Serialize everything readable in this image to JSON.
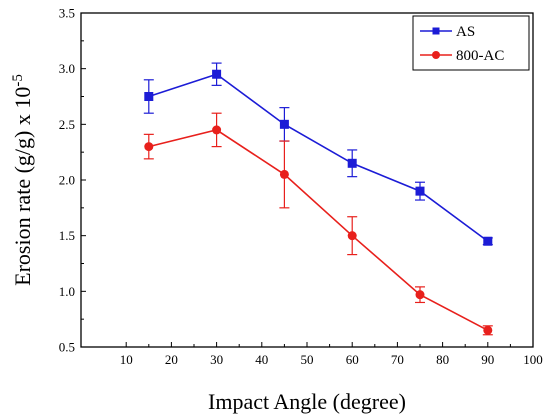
{
  "chart_data": {
    "type": "line",
    "xlabel": "Impact Angle (degree)",
    "ylabel_text": "Erosion rate (g/g) x 10",
    "ylabel_exponent": "-5",
    "xlim": [
      0,
      100
    ],
    "ylim": [
      0.5,
      3.5
    ],
    "x_ticks": [
      10,
      20,
      30,
      40,
      50,
      60,
      70,
      80,
      90,
      100
    ],
    "y_ticks": [
      0.5,
      1.0,
      1.5,
      2.0,
      2.5,
      3.0,
      3.5
    ],
    "x_tick_labels": [
      "10",
      "20",
      "30",
      "40",
      "50",
      "60",
      "70",
      "80",
      "90",
      "100"
    ],
    "y_tick_labels": [
      "0.5",
      "1.0",
      "1.5",
      "2.0",
      "2.5",
      "3.0",
      "3.5"
    ],
    "legend_position": "top-right",
    "series": [
      {
        "name": "AS",
        "marker": "square",
        "color": "#1c1cd6",
        "points": [
          {
            "x": 15,
            "y": 2.75,
            "err": 0.15
          },
          {
            "x": 30,
            "y": 2.95,
            "err": 0.1
          },
          {
            "x": 45,
            "y": 2.5,
            "err": 0.15
          },
          {
            "x": 60,
            "y": 2.15,
            "err": 0.12
          },
          {
            "x": 75,
            "y": 1.9,
            "err": 0.08
          },
          {
            "x": 90,
            "y": 1.45,
            "err": 0.03
          }
        ]
      },
      {
        "name": "800-AC",
        "marker": "circle",
        "color": "#e8201c",
        "points": [
          {
            "x": 15,
            "y": 2.3,
            "err": 0.11
          },
          {
            "x": 30,
            "y": 2.45,
            "err": 0.15
          },
          {
            "x": 45,
            "y": 2.05,
            "err": 0.3
          },
          {
            "x": 60,
            "y": 1.5,
            "err": 0.17
          },
          {
            "x": 75,
            "y": 0.97,
            "err": 0.07
          },
          {
            "x": 90,
            "y": 0.65,
            "err": 0.04
          }
        ]
      }
    ]
  }
}
